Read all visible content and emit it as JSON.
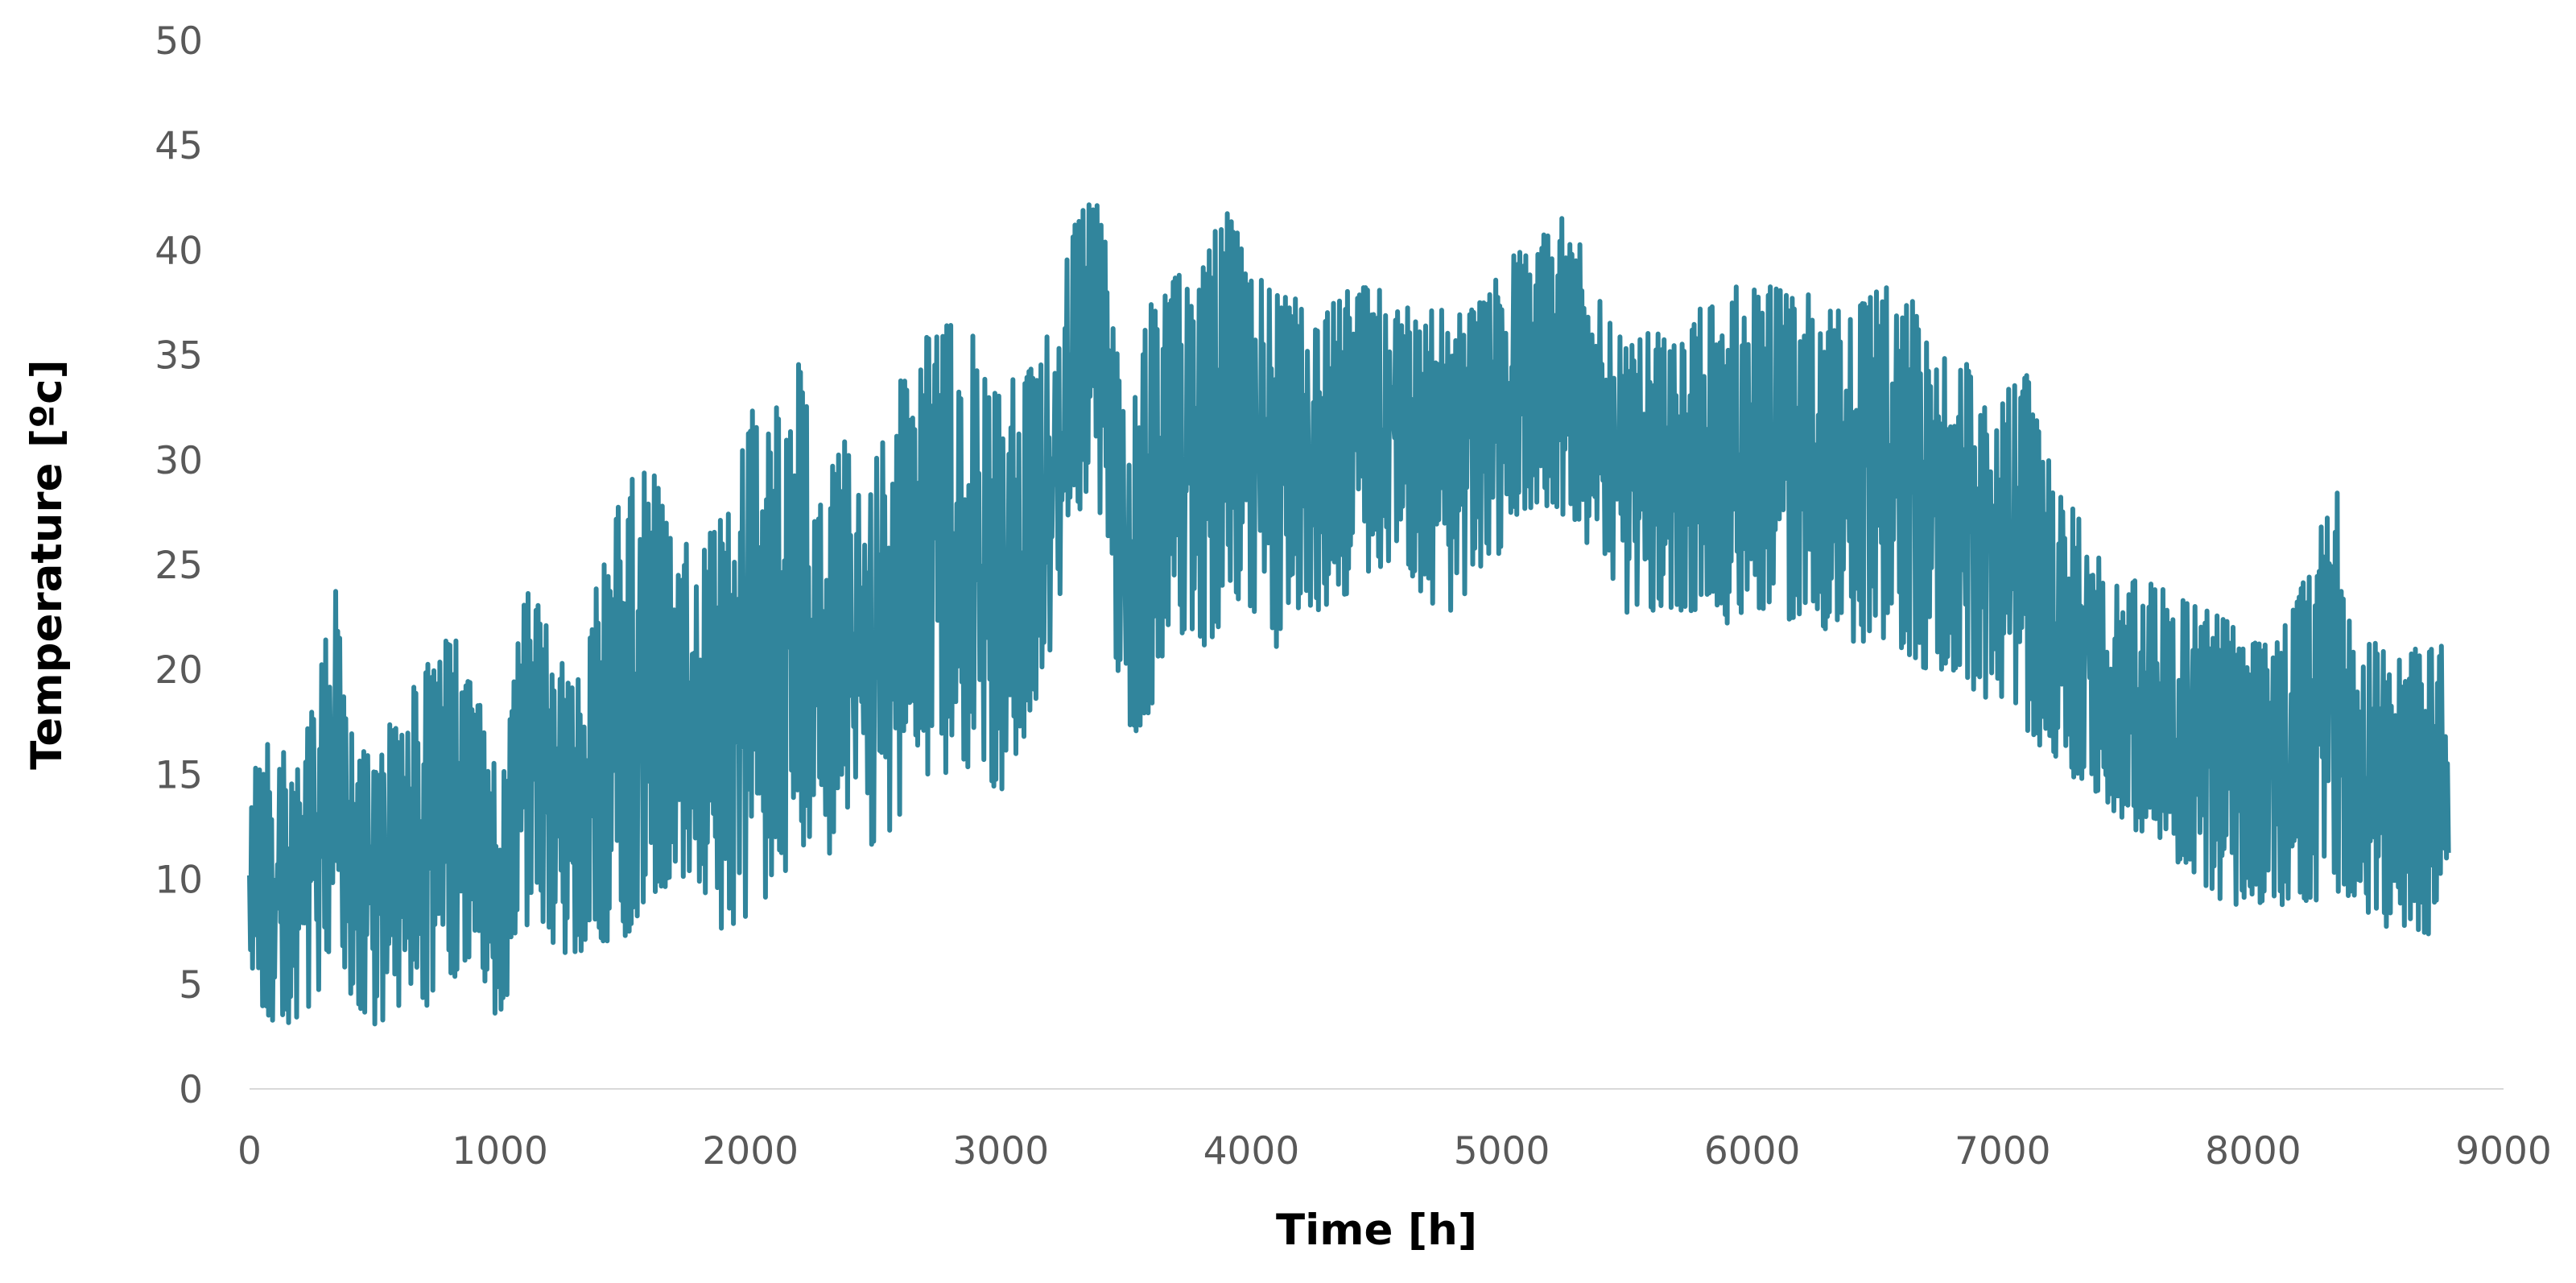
{
  "chart_data": {
    "type": "line",
    "title": "",
    "xlabel": "Time [h]",
    "ylabel": "Temperature [ºc]",
    "xlim": [
      0,
      9000
    ],
    "ylim": [
      0,
      50
    ],
    "xticks": [
      0,
      1000,
      2000,
      3000,
      4000,
      5000,
      6000,
      7000,
      8000,
      9000
    ],
    "yticks": [
      0,
      5,
      10,
      15,
      20,
      25,
      30,
      35,
      40,
      45,
      50
    ],
    "grid": false,
    "legend": "none",
    "line_color": "#31859C",
    "series_envelope": {
      "x": [
        0,
        100,
        200,
        300,
        340,
        400,
        500,
        600,
        700,
        800,
        900,
        1000,
        1100,
        1200,
        1300,
        1400,
        1500,
        1600,
        1700,
        1800,
        1900,
        2000,
        2100,
        2200,
        2300,
        2400,
        2500,
        2600,
        2700,
        2800,
        2900,
        3000,
        3100,
        3200,
        3300,
        3400,
        3500,
        3600,
        3700,
        3800,
        3900,
        4000,
        4100,
        4200,
        4300,
        4400,
        4500,
        4600,
        4700,
        4800,
        4900,
        5000,
        5100,
        5200,
        5300,
        5400,
        5500,
        5600,
        5700,
        5800,
        5900,
        6000,
        6100,
        6200,
        6300,
        6400,
        6500,
        6600,
        6700,
        6800,
        6900,
        7000,
        7100,
        7200,
        7300,
        7400,
        7500,
        7600,
        7700,
        7800,
        7900,
        8000,
        8100,
        8200,
        8300,
        8350,
        8400,
        8500,
        8600,
        8700,
        8780
      ],
      "max": [
        16.5,
        17.5,
        16,
        22,
        26,
        18,
        17,
        19,
        21,
        23,
        20,
        15,
        25,
        23,
        20,
        26,
        30,
        31,
        27,
        27,
        29,
        34,
        34,
        36,
        30,
        33,
        32,
        35,
        37,
        38,
        37,
        36,
        35,
        39,
        43,
        43,
        32,
        39,
        40,
        40,
        43.5,
        40,
        41,
        38,
        38,
        39,
        39,
        38,
        38,
        38,
        38,
        40,
        41,
        42.5,
        42,
        38,
        36,
        37,
        38,
        38,
        39,
        39.5,
        39,
        39,
        38,
        38,
        39,
        39.5,
        37,
        36,
        35,
        34,
        35,
        30,
        28,
        26,
        25,
        25,
        24,
        24,
        23,
        22,
        22,
        25,
        29,
        30,
        22,
        22,
        21,
        22.5,
        22
      ],
      "min": [
        4,
        2,
        2.5,
        4,
        6,
        3,
        2,
        2,
        3,
        4,
        6,
        2,
        7,
        6,
        5.5,
        6,
        6,
        8,
        9,
        9,
        6,
        7,
        8,
        10,
        10,
        11,
        10,
        12,
        13,
        14,
        14,
        13,
        15,
        20,
        27,
        26,
        15.5,
        17,
        21,
        20,
        21,
        22,
        20,
        22,
        22,
        23,
        24,
        25,
        22,
        22,
        23,
        25,
        27,
        27,
        26,
        24,
        22,
        22,
        22,
        22,
        21,
        22,
        22,
        21,
        21,
        20,
        20,
        20,
        19,
        19,
        18,
        17,
        16,
        15,
        14,
        13,
        12,
        11,
        10,
        9,
        8,
        8,
        8,
        8,
        8,
        8,
        7,
        7,
        7,
        6.5,
        8
      ]
    }
  }
}
